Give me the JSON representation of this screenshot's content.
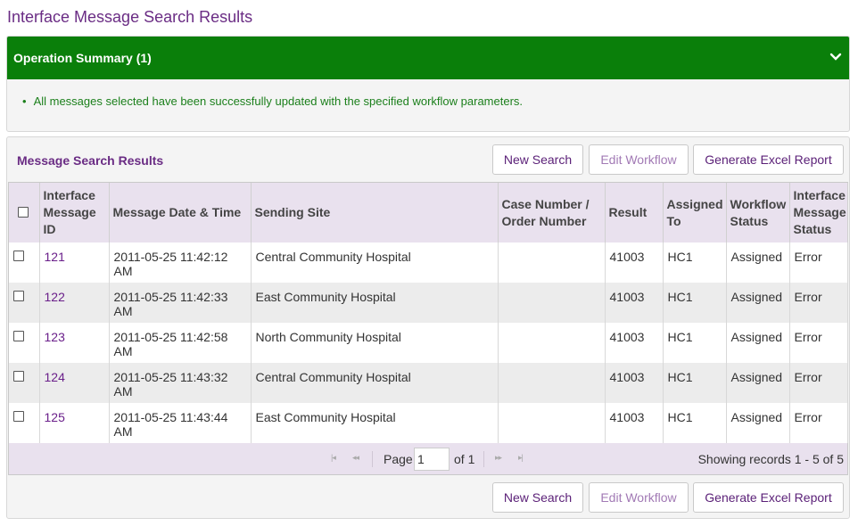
{
  "page_title": "Interface Message Search Results",
  "operation_summary": {
    "header": "Operation Summary (1)",
    "message": "All messages selected have been successfully updated with the specified workflow parameters."
  },
  "results": {
    "title": "Message Search Results",
    "buttons": {
      "new_search": "New Search",
      "edit_workflow": "Edit Workflow",
      "generate_report": "Generate Excel Report"
    },
    "columns": [
      "Interface Message ID",
      "Message Date & Time",
      "Sending Site",
      "Case Number / Order Number",
      "Result",
      "Assigned To",
      "Workflow Status",
      "Interface Message Status"
    ],
    "rows": [
      {
        "id": "121",
        "datetime": "2011-05-25 11:42:12 AM",
        "site": "Central Community Hospital",
        "case": "",
        "result": "41003",
        "assigned": "HC1",
        "workflow": "Assigned",
        "status": "Error"
      },
      {
        "id": "122",
        "datetime": "2011-05-25 11:42:33 AM",
        "site": "East Community Hospital",
        "case": "",
        "result": "41003",
        "assigned": "HC1",
        "workflow": "Assigned",
        "status": "Error"
      },
      {
        "id": "123",
        "datetime": "2011-05-25 11:42:58 AM",
        "site": "North Community Hospital",
        "case": "",
        "result": "41003",
        "assigned": "HC1",
        "workflow": "Assigned",
        "status": "Error"
      },
      {
        "id": "124",
        "datetime": "2011-05-25 11:43:32 AM",
        "site": "Central Community Hospital",
        "case": "",
        "result": "41003",
        "assigned": "HC1",
        "workflow": "Assigned",
        "status": "Error"
      },
      {
        "id": "125",
        "datetime": "2011-05-25 11:43:44 AM",
        "site": "East Community Hospital",
        "case": "",
        "result": "41003",
        "assigned": "HC1",
        "workflow": "Assigned",
        "status": "Error"
      }
    ],
    "pager": {
      "page_label": "Page",
      "page_value": "1",
      "of_label": "of 1",
      "records": "Showing records 1 - 5 of 5"
    }
  }
}
